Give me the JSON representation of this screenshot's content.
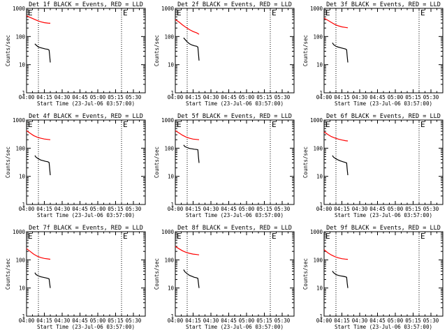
{
  "figure": {
    "layout": "3x3 grid of detector rate plots"
  },
  "chart_data": [
    {
      "type": "line",
      "title": "Det 1f BLACK = Events, RED = LLD",
      "xlabel": "Start Time (23-Jul-06 03:57:00)",
      "ylabel": "Counts/sec",
      "x_ticks": [
        "04:00",
        "04:15",
        "04:30",
        "04:45",
        "05:00",
        "05:15",
        "05:30"
      ],
      "y_ticks": [
        "1",
        "10",
        "100",
        "1000"
      ],
      "yscale": "log",
      "ylim": [
        1,
        1000
      ],
      "xlim": [
        "04:00",
        "05:40"
      ],
      "markers": [
        {
          "label": "E",
          "x": "04:10"
        },
        {
          "label": "E",
          "x": "05:20"
        }
      ],
      "series": [
        {
          "name": "RED",
          "color": "#ff0000",
          "x": [
            "04:00",
            "04:03",
            "04:06",
            "04:09",
            "04:12",
            "04:15",
            "04:18",
            "04:20"
          ],
          "y": [
            550,
            480,
            420,
            370,
            335,
            310,
            300,
            295
          ]
        },
        {
          "name": "BLACK",
          "color": "#000000",
          "x": [
            "04:07",
            "04:08",
            "04:10",
            "04:12",
            "04:14",
            "04:16",
            "04:18",
            "04:19",
            "04:19.5",
            "04:20"
          ],
          "y": [
            55,
            50,
            42,
            40,
            38,
            36,
            35,
            33,
            20,
            12
          ]
        }
      ]
    },
    {
      "type": "line",
      "title": "Det 2f BLACK = Events, RED = LLD",
      "xlabel": "Start Time (23-Jul-06 03:57:00)",
      "ylabel": "Counts/sec",
      "x_ticks": [
        "04:00",
        "04:15",
        "04:30",
        "04:45",
        "05:00",
        "05:15",
        "05:30"
      ],
      "y_ticks": [
        "1",
        "10",
        "100",
        "1000"
      ],
      "yscale": "log",
      "ylim": [
        1,
        1000
      ],
      "xlim": [
        "04:00",
        "05:40"
      ],
      "markers": [
        {
          "label": "E",
          "x": "04:10"
        },
        {
          "label": "E",
          "x": "05:20"
        }
      ],
      "series": [
        {
          "name": "RED",
          "color": "#ff0000",
          "x": [
            "04:00",
            "04:03",
            "04:06",
            "04:09",
            "04:12",
            "04:15",
            "04:18",
            "04:20"
          ],
          "y": [
            400,
            330,
            260,
            210,
            175,
            150,
            135,
            120
          ]
        },
        {
          "name": "BLACK",
          "color": "#000000",
          "x": [
            "04:07",
            "04:08",
            "04:10",
            "04:12",
            "04:14",
            "04:16",
            "04:18",
            "04:19",
            "04:19.5",
            "04:20"
          ],
          "y": [
            90,
            80,
            65,
            55,
            50,
            47,
            45,
            42,
            25,
            14
          ]
        }
      ]
    },
    {
      "type": "line",
      "title": "Det 3f BLACK = Events, RED = LLD",
      "xlabel": "Start Time (23-Jul-06 03:57:00)",
      "ylabel": "Counts/sec",
      "x_ticks": [
        "04:00",
        "04:15",
        "04:30",
        "04:45",
        "05:00",
        "05:15",
        "05:30"
      ],
      "y_ticks": [
        "1",
        "10",
        "100",
        "1000"
      ],
      "yscale": "log",
      "ylim": [
        1,
        1000
      ],
      "xlim": [
        "04:00",
        "05:40"
      ],
      "markers": [
        {
          "label": "E",
          "x": "04:10"
        },
        {
          "label": "E",
          "x": "05:20"
        }
      ],
      "series": [
        {
          "name": "RED",
          "color": "#ff0000",
          "x": [
            "04:00",
            "04:03",
            "04:06",
            "04:09",
            "04:12",
            "04:15",
            "04:18",
            "04:20"
          ],
          "y": [
            450,
            380,
            320,
            270,
            240,
            220,
            210,
            205
          ]
        },
        {
          "name": "BLACK",
          "color": "#000000",
          "x": [
            "04:07",
            "04:08",
            "04:10",
            "04:12",
            "04:14",
            "04:16",
            "04:18",
            "04:19",
            "04:19.5",
            "04:20"
          ],
          "y": [
            60,
            52,
            45,
            42,
            40,
            38,
            36,
            34,
            20,
            12
          ]
        }
      ]
    },
    {
      "type": "line",
      "title": "Det 4f BLACK = Events, RED = LLD",
      "xlabel": "Start Time (23-Jul-06 03:57:00)",
      "ylabel": "Counts/sec",
      "x_ticks": [
        "04:00",
        "04:15",
        "04:30",
        "04:45",
        "05:00",
        "05:15",
        "05:30"
      ],
      "y_ticks": [
        "1",
        "10",
        "100",
        "1000"
      ],
      "yscale": "log",
      "ylim": [
        1,
        1000
      ],
      "xlim": [
        "04:00",
        "05:40"
      ],
      "markers": [
        {
          "label": "E",
          "x": "04:10"
        },
        {
          "label": "E",
          "x": "05:20"
        }
      ],
      "series": [
        {
          "name": "RED",
          "color": "#ff0000",
          "x": [
            "04:00",
            "04:03",
            "04:06",
            "04:09",
            "04:12",
            "04:15",
            "04:18",
            "04:20"
          ],
          "y": [
            420,
            340,
            280,
            245,
            225,
            212,
            205,
            200
          ]
        },
        {
          "name": "BLACK",
          "color": "#000000",
          "x": [
            "04:07",
            "04:08",
            "04:10",
            "04:12",
            "04:14",
            "04:16",
            "04:18",
            "04:19",
            "04:19.5",
            "04:20"
          ],
          "y": [
            55,
            48,
            42,
            38,
            36,
            34,
            33,
            31,
            18,
            11
          ]
        }
      ]
    },
    {
      "type": "line",
      "title": "Det 5f BLACK = Events, RED = LLD",
      "xlabel": "Start Time (23-Jul-06 03:57:00)",
      "ylabel": "Counts/sec",
      "x_ticks": [
        "04:00",
        "04:15",
        "04:30",
        "04:45",
        "05:00",
        "05:15",
        "05:30"
      ],
      "y_ticks": [
        "1",
        "10",
        "100",
        "1000"
      ],
      "yscale": "log",
      "ylim": [
        1,
        1000
      ],
      "xlim": [
        "04:00",
        "05:40"
      ],
      "markers": [
        {
          "label": "E",
          "x": "04:10"
        },
        {
          "label": "E",
          "x": "05:20"
        }
      ],
      "series": [
        {
          "name": "RED",
          "color": "#ff0000",
          "x": [
            "04:00",
            "04:03",
            "04:06",
            "04:09",
            "04:12",
            "04:15",
            "04:18",
            "04:20"
          ],
          "y": [
            420,
            350,
            290,
            250,
            225,
            210,
            205,
            200
          ]
        },
        {
          "name": "BLACK",
          "color": "#000000",
          "x": [
            "04:07",
            "04:08",
            "04:10",
            "04:12",
            "04:14",
            "04:16",
            "04:18",
            "04:19",
            "04:19.5",
            "04:20"
          ],
          "y": [
            130,
            115,
            105,
            98,
            95,
            92,
            90,
            88,
            50,
            30
          ]
        }
      ]
    },
    {
      "type": "line",
      "title": "Det 6f BLACK = Events, RED = LLD",
      "xlabel": "Start Time (23-Jul-06 03:57:00)",
      "ylabel": "Counts/sec",
      "x_ticks": [
        "04:00",
        "04:15",
        "04:30",
        "04:45",
        "05:00",
        "05:15",
        "05:30"
      ],
      "y_ticks": [
        "1",
        "10",
        "100",
        "1000"
      ],
      "yscale": "log",
      "ylim": [
        1,
        1000
      ],
      "xlim": [
        "04:00",
        "05:40"
      ],
      "markers": [
        {
          "label": "E",
          "x": "04:10"
        },
        {
          "label": "E",
          "x": "05:20"
        }
      ],
      "series": [
        {
          "name": "RED",
          "color": "#ff0000",
          "x": [
            "04:00",
            "04:03",
            "04:06",
            "04:09",
            "04:12",
            "04:15",
            "04:18",
            "04:20"
          ],
          "y": [
            380,
            310,
            260,
            230,
            210,
            195,
            185,
            180
          ]
        },
        {
          "name": "BLACK",
          "color": "#000000",
          "x": [
            "04:07",
            "04:08",
            "04:10",
            "04:12",
            "04:14",
            "04:16",
            "04:18",
            "04:19",
            "04:19.5",
            "04:20"
          ],
          "y": [
            55,
            48,
            42,
            38,
            35,
            33,
            31,
            30,
            18,
            11
          ]
        }
      ]
    },
    {
      "type": "line",
      "title": "Det 7f BLACK = Events, RED = LLD",
      "xlabel": "Start Time (23-Jul-06 03:57:00)",
      "ylabel": "Counts/sec",
      "x_ticks": [
        "04:00",
        "04:15",
        "04:30",
        "04:45",
        "05:00",
        "05:15",
        "05:30"
      ],
      "y_ticks": [
        "1",
        "10",
        "100",
        "1000"
      ],
      "yscale": "log",
      "ylim": [
        1,
        1000
      ],
      "xlim": [
        "04:00",
        "05:40"
      ],
      "markers": [
        {
          "label": "E",
          "x": "04:10"
        },
        {
          "label": "E",
          "x": "05:20"
        }
      ],
      "series": [
        {
          "name": "RED",
          "color": "#ff0000",
          "x": [
            "04:00",
            "04:03",
            "04:06",
            "04:09",
            "04:12",
            "04:15",
            "04:18",
            "04:20"
          ],
          "y": [
            250,
            200,
            160,
            135,
            120,
            112,
            108,
            105
          ]
        },
        {
          "name": "BLACK",
          "color": "#000000",
          "x": [
            "04:07",
            "04:08",
            "04:10",
            "04:12",
            "04:14",
            "04:16",
            "04:18",
            "04:19",
            "04:19.5",
            "04:20"
          ],
          "y": [
            35,
            30,
            27,
            25,
            24,
            23,
            22,
            21,
            14,
            10
          ]
        }
      ]
    },
    {
      "type": "line",
      "title": "Det 8f BLACK = Events, RED = LLD",
      "xlabel": "Start Time (23-Jul-06 03:57:00)",
      "ylabel": "Counts/sec",
      "x_ticks": [
        "04:00",
        "04:15",
        "04:30",
        "04:45",
        "05:00",
        "05:15",
        "05:30"
      ],
      "y_ticks": [
        "1",
        "10",
        "100",
        "1000"
      ],
      "yscale": "log",
      "ylim": [
        1,
        1000
      ],
      "xlim": [
        "04:00",
        "05:40"
      ],
      "markers": [
        {
          "label": "E",
          "x": "04:10"
        },
        {
          "label": "E",
          "x": "05:20"
        }
      ],
      "series": [
        {
          "name": "RED",
          "color": "#ff0000",
          "x": [
            "04:00",
            "04:03",
            "04:06",
            "04:09",
            "04:12",
            "04:15",
            "04:18",
            "04:20"
          ],
          "y": [
            300,
            250,
            210,
            185,
            170,
            160,
            155,
            150
          ]
        },
        {
          "name": "BLACK",
          "color": "#000000",
          "x": [
            "04:07",
            "04:08",
            "04:10",
            "04:12",
            "04:14",
            "04:16",
            "04:18",
            "04:19",
            "04:19.5",
            "04:20"
          ],
          "y": [
            45,
            38,
            32,
            28,
            26,
            24,
            23,
            22,
            15,
            10
          ]
        }
      ]
    },
    {
      "type": "line",
      "title": "Det 9f BLACK = Events, RED = LLD",
      "xlabel": "Start Time (23-Jul-06 03:57:00)",
      "ylabel": "Counts/sec",
      "x_ticks": [
        "04:00",
        "04:15",
        "04:30",
        "04:45",
        "05:00",
        "05:15",
        "05:30"
      ],
      "y_ticks": [
        "1",
        "10",
        "100",
        "1000"
      ],
      "yscale": "log",
      "ylim": [
        1,
        1000
      ],
      "xlim": [
        "04:00",
        "05:40"
      ],
      "markers": [
        {
          "label": "E",
          "x": "04:10"
        },
        {
          "label": "E",
          "x": "05:20"
        }
      ],
      "series": [
        {
          "name": "RED",
          "color": "#ff0000",
          "x": [
            "04:00",
            "04:03",
            "04:06",
            "04:09",
            "04:12",
            "04:15",
            "04:18",
            "04:20"
          ],
          "y": [
            230,
            180,
            150,
            130,
            118,
            110,
            106,
            104
          ]
        },
        {
          "name": "BLACK",
          "color": "#000000",
          "x": [
            "04:07",
            "04:08",
            "04:10",
            "04:12",
            "04:14",
            "04:16",
            "04:18",
            "04:19",
            "04:19.5",
            "04:20"
          ],
          "y": [
            40,
            35,
            30,
            28,
            27,
            26,
            25,
            24,
            15,
            10
          ]
        }
      ]
    }
  ]
}
